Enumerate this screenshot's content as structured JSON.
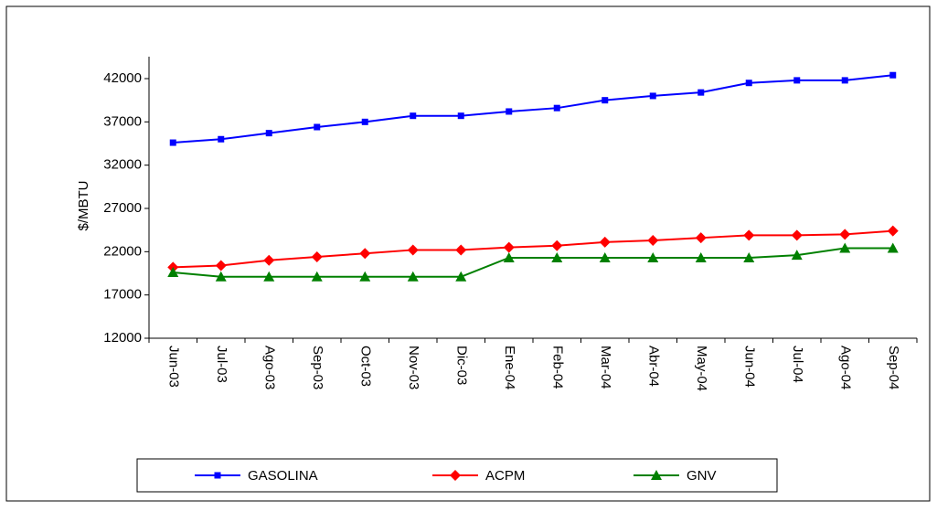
{
  "chart_data": {
    "type": "line",
    "y_label": "$/MBTU",
    "categories": [
      "Jun-03",
      "Jul-03",
      "Ago-03",
      "Sep-03",
      "Oct-03",
      "Nov-03",
      "Dic-03",
      "Ene-04",
      "Feb-04",
      "Mar-04",
      "Abr-04",
      "May-04",
      "Jun-04",
      "Jul-04",
      "Ago-04",
      "Sep-04"
    ],
    "series": [
      {
        "name": "GASOLINA",
        "color": "#0000ff",
        "marker": "square",
        "values": [
          34600,
          35000,
          35700,
          36400,
          37000,
          37700,
          37700,
          38200,
          38600,
          39500,
          40000,
          40400,
          41500,
          41800,
          41800,
          42400
        ]
      },
      {
        "name": "ACPM",
        "color": "#ff0000",
        "marker": "diamond",
        "values": [
          20200,
          20400,
          21000,
          21400,
          21800,
          22200,
          22200,
          22500,
          22700,
          23100,
          23300,
          23600,
          23900,
          23900,
          24000,
          24400
        ]
      },
      {
        "name": "GNV",
        "color": "#008000",
        "marker": "triangle",
        "values": [
          19600,
          19100,
          19100,
          19100,
          19100,
          19100,
          19100,
          21300,
          21300,
          21300,
          21300,
          21300,
          21300,
          21600,
          22400,
          22400
        ]
      }
    ],
    "ylim": [
      12000,
      42000
    ],
    "yticks": [
      12000,
      17000,
      22000,
      27000,
      32000,
      37000,
      42000
    ],
    "legend": "bottom"
  }
}
